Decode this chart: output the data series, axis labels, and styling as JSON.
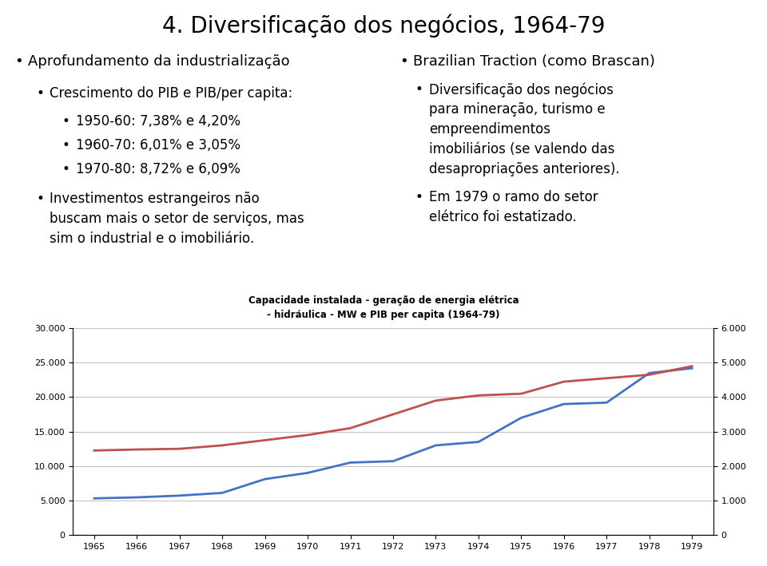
{
  "title": "4. Diversificação dos negócios, 1964-79",
  "title_fontsize": 20,
  "chart_title_line1": "Capacidade instalada - geração de energia elétrica",
  "chart_title_line2": "- hidráulica - MW e PIB per capita (1964-79)",
  "chart_title_fontsize": 8.5,
  "years": [
    1965,
    1966,
    1967,
    1968,
    1969,
    1970,
    1971,
    1972,
    1973,
    1974,
    1975,
    1976,
    1977,
    1978,
    1979
  ],
  "mw_values": [
    5300,
    5450,
    5700,
    6100,
    8100,
    9000,
    10500,
    10700,
    13000,
    13500,
    17000,
    19000,
    19200,
    23500,
    24200
  ],
  "pib_values": [
    2450,
    2480,
    2500,
    2600,
    2750,
    2900,
    3100,
    3500,
    3900,
    4050,
    4100,
    4450,
    4550,
    4650,
    4900
  ],
  "mw_color": "#4472C4",
  "pib_color": "#C0504D",
  "left_ylim": [
    0,
    30000
  ],
  "right_ylim": [
    0,
    6000
  ],
  "left_yticks": [
    0,
    5000,
    10000,
    15000,
    20000,
    25000,
    30000
  ],
  "right_yticks": [
    0,
    1000,
    2000,
    3000,
    4000,
    5000,
    6000
  ],
  "bg_color": "#FFFFFF",
  "grid_color": "#BEBEBE",
  "text_color": "#000000",
  "axis_label_fontsize": 8,
  "bullet_l1_fontsize": 13,
  "bullet_l2_fontsize": 12,
  "bullet_l3_fontsize": 12
}
